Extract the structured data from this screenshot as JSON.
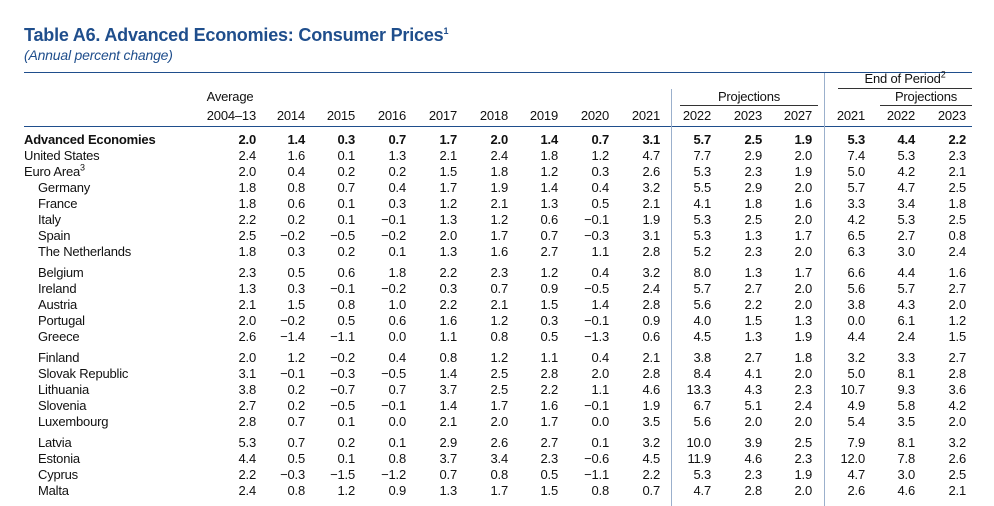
{
  "header": {
    "title": "Table A6. Advanced Economies: Consumer Prices",
    "title_note": "1",
    "subtitle": "(Annual percent change)"
  },
  "table": {
    "end_of_period": "End of Period",
    "end_of_period_note": "2",
    "projections": "Projections",
    "projections_end": "Projections",
    "average": "Average",
    "columns": [
      "2004–13",
      "2014",
      "2015",
      "2016",
      "2017",
      "2018",
      "2019",
      "2020",
      "2021",
      "2022",
      "2023",
      "2027",
      "2021",
      "2022",
      "2023"
    ],
    "groups": [
      [
        {
          "name": "Advanced Economies",
          "values": [
            "2.0",
            "1.4",
            "0.3",
            "0.7",
            "1.7",
            "2.0",
            "1.4",
            "0.7",
            "3.1",
            "5.7",
            "2.5",
            "1.9",
            "5.3",
            "4.4",
            "2.2"
          ]
        },
        {
          "name": "United States",
          "values": [
            "2.4",
            "1.6",
            "0.1",
            "1.3",
            "2.1",
            "2.4",
            "1.8",
            "1.2",
            "4.7",
            "7.7",
            "2.9",
            "2.0",
            "7.4",
            "5.3",
            "2.3"
          ]
        },
        {
          "name": "Euro Area",
          "note": "3",
          "values": [
            "2.0",
            "0.4",
            "0.2",
            "0.2",
            "1.5",
            "1.8",
            "1.2",
            "0.3",
            "2.6",
            "5.3",
            "2.3",
            "1.9",
            "5.0",
            "4.2",
            "2.1"
          ]
        },
        {
          "name": "Germany",
          "values": [
            "1.8",
            "0.8",
            "0.7",
            "0.4",
            "1.7",
            "1.9",
            "1.4",
            "0.4",
            "3.2",
            "5.5",
            "2.9",
            "2.0",
            "5.7",
            "4.7",
            "2.5"
          ]
        },
        {
          "name": "France",
          "values": [
            "1.8",
            "0.6",
            "0.1",
            "0.3",
            "1.2",
            "2.1",
            "1.3",
            "0.5",
            "2.1",
            "4.1",
            "1.8",
            "1.6",
            "3.3",
            "3.4",
            "1.8"
          ]
        },
        {
          "name": "Italy",
          "values": [
            "2.2",
            "0.2",
            "0.1",
            "−0.1",
            "1.3",
            "1.2",
            "0.6",
            "−0.1",
            "1.9",
            "5.3",
            "2.5",
            "2.0",
            "4.2",
            "5.3",
            "2.5"
          ]
        },
        {
          "name": "Spain",
          "values": [
            "2.5",
            "−0.2",
            "−0.5",
            "−0.2",
            "2.0",
            "1.7",
            "0.7",
            "−0.3",
            "3.1",
            "5.3",
            "1.3",
            "1.7",
            "6.5",
            "2.7",
            "0.8"
          ]
        },
        {
          "name": "The Netherlands",
          "values": [
            "1.8",
            "0.3",
            "0.2",
            "0.1",
            "1.3",
            "1.6",
            "2.7",
            "1.1",
            "2.8",
            "5.2",
            "2.3",
            "2.0",
            "6.3",
            "3.0",
            "2.4"
          ]
        }
      ],
      [
        {
          "name": "Belgium",
          "values": [
            "2.3",
            "0.5",
            "0.6",
            "1.8",
            "2.2",
            "2.3",
            "1.2",
            "0.4",
            "3.2",
            "8.0",
            "1.3",
            "1.7",
            "6.6",
            "4.4",
            "1.6"
          ]
        },
        {
          "name": "Ireland",
          "values": [
            "1.3",
            "0.3",
            "−0.1",
            "−0.2",
            "0.3",
            "0.7",
            "0.9",
            "−0.5",
            "2.4",
            "5.7",
            "2.7",
            "2.0",
            "5.6",
            "5.7",
            "2.7"
          ]
        },
        {
          "name": "Austria",
          "values": [
            "2.1",
            "1.5",
            "0.8",
            "1.0",
            "2.2",
            "2.1",
            "1.5",
            "1.4",
            "2.8",
            "5.6",
            "2.2",
            "2.0",
            "3.8",
            "4.3",
            "2.0"
          ]
        },
        {
          "name": "Portugal",
          "values": [
            "2.0",
            "−0.2",
            "0.5",
            "0.6",
            "1.6",
            "1.2",
            "0.3",
            "−0.1",
            "0.9",
            "4.0",
            "1.5",
            "1.3",
            "0.0",
            "6.1",
            "1.2"
          ]
        },
        {
          "name": "Greece",
          "values": [
            "2.6",
            "−1.4",
            "−1.1",
            "0.0",
            "1.1",
            "0.8",
            "0.5",
            "−1.3",
            "0.6",
            "4.5",
            "1.3",
            "1.9",
            "4.4",
            "2.4",
            "1.5"
          ]
        }
      ],
      [
        {
          "name": "Finland",
          "values": [
            "2.0",
            "1.2",
            "−0.2",
            "0.4",
            "0.8",
            "1.2",
            "1.1",
            "0.4",
            "2.1",
            "3.8",
            "2.7",
            "1.8",
            "3.2",
            "3.3",
            "2.7"
          ]
        },
        {
          "name": "Slovak Republic",
          "values": [
            "3.1",
            "−0.1",
            "−0.3",
            "−0.5",
            "1.4",
            "2.5",
            "2.8",
            "2.0",
            "2.8",
            "8.4",
            "4.1",
            "2.0",
            "5.0",
            "8.1",
            "2.8"
          ]
        },
        {
          "name": "Lithuania",
          "values": [
            "3.8",
            "0.2",
            "−0.7",
            "0.7",
            "3.7",
            "2.5",
            "2.2",
            "1.1",
            "4.6",
            "13.3",
            "4.3",
            "2.3",
            "10.7",
            "9.3",
            "3.6"
          ]
        },
        {
          "name": "Slovenia",
          "values": [
            "2.7",
            "0.2",
            "−0.5",
            "−0.1",
            "1.4",
            "1.7",
            "1.6",
            "−0.1",
            "1.9",
            "6.7",
            "5.1",
            "2.4",
            "4.9",
            "5.8",
            "4.2"
          ]
        },
        {
          "name": "Luxembourg",
          "values": [
            "2.8",
            "0.7",
            "0.1",
            "0.0",
            "2.1",
            "2.0",
            "1.7",
            "0.0",
            "3.5",
            "5.6",
            "2.0",
            "2.0",
            "5.4",
            "3.5",
            "2.0"
          ]
        }
      ],
      [
        {
          "name": "Latvia",
          "values": [
            "5.3",
            "0.7",
            "0.2",
            "0.1",
            "2.9",
            "2.6",
            "2.7",
            "0.1",
            "3.2",
            "10.0",
            "3.9",
            "2.5",
            "7.9",
            "8.1",
            "3.2"
          ]
        },
        {
          "name": "Estonia",
          "values": [
            "4.4",
            "0.5",
            "0.1",
            "0.8",
            "3.7",
            "3.4",
            "2.3",
            "−0.6",
            "4.5",
            "11.9",
            "4.6",
            "2.3",
            "12.0",
            "7.8",
            "2.6"
          ]
        },
        {
          "name": "Cyprus",
          "values": [
            "2.2",
            "−0.3",
            "−1.5",
            "−1.2",
            "0.7",
            "0.8",
            "0.5",
            "−1.1",
            "2.2",
            "5.3",
            "2.3",
            "1.9",
            "4.7",
            "3.0",
            "2.5"
          ]
        },
        {
          "name": "Malta",
          "values": [
            "2.4",
            "0.8",
            "1.2",
            "0.9",
            "1.3",
            "1.7",
            "1.5",
            "0.8",
            "0.7",
            "4.7",
            "2.8",
            "2.0",
            "2.6",
            "4.6",
            "2.1"
          ]
        }
      ]
    ]
  }
}
